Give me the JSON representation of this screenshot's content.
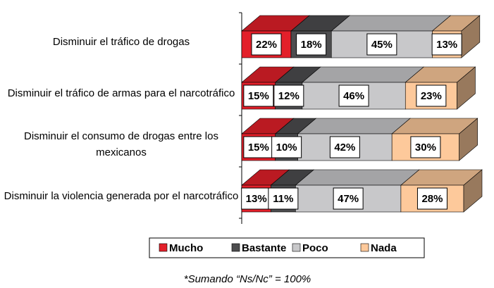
{
  "chart_data": {
    "type": "bar3d_stacked_horizontal",
    "categories": [
      "Disminuir el tráfico de drogas",
      "Disminuir el tráfico de armas para el narcotráfico",
      "Disminuir el consumo de drogas entre los mexicanos",
      "Disminuir la violencia generada por el narcotráfico"
    ],
    "series": [
      {
        "name": "Mucho",
        "color": "#e3202a",
        "values": [
          22,
          15,
          15,
          13
        ],
        "value_labels": [
          "22%",
          "15%",
          "15%",
          "13%"
        ]
      },
      {
        "name": "Bastante",
        "color": "#4d4d4f",
        "values": [
          18,
          12,
          10,
          11
        ],
        "value_labels": [
          "18%",
          "12%",
          "10%",
          "11%"
        ]
      },
      {
        "name": "Poco",
        "color": "#c8c8ca",
        "values": [
          45,
          46,
          42,
          47
        ],
        "value_labels": [
          "45%",
          "46%",
          "42%",
          "47%"
        ]
      },
      {
        "name": "Nada",
        "color": "#fdc99b",
        "values": [
          13,
          23,
          30,
          28
        ],
        "value_labels": [
          "13%",
          "23%",
          "30%",
          "28%"
        ]
      }
    ],
    "footnote": "*Sumando “Ns/Nc” = 100%"
  }
}
